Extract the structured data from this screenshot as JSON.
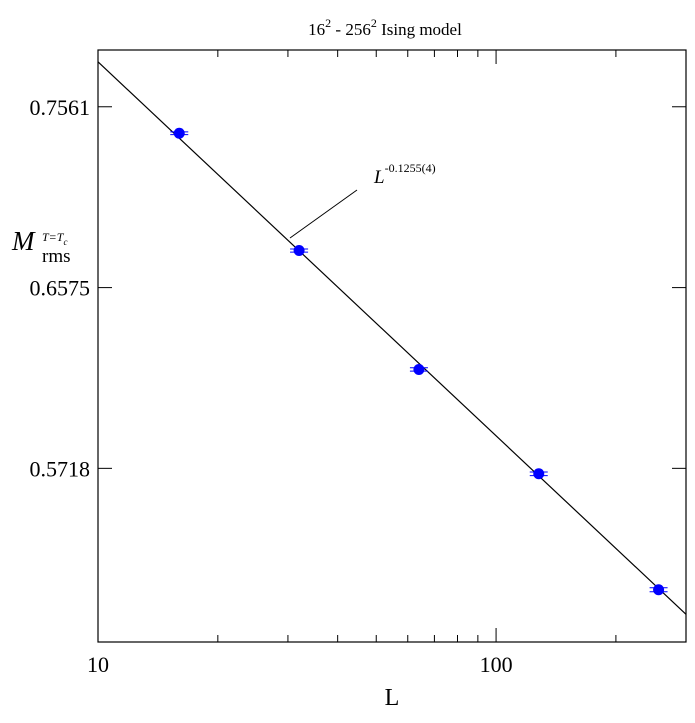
{
  "chart_data": {
    "type": "scatter",
    "title": {
      "base1": "16",
      "exp1": "2",
      "mid": " - 256",
      "exp2": "2",
      "rest": " Ising model"
    },
    "xlabel": "L",
    "ylabel": {
      "main": "M",
      "sub": "rms",
      "sup": "T=T",
      "supsub": "c"
    },
    "x_scale": "log",
    "y_scale": "log",
    "xlim": [
      10,
      300
    ],
    "ylim": [
      0.5,
      0.79
    ],
    "x_ticks": [
      10,
      100
    ],
    "x_tick_labels": [
      "10",
      "100"
    ],
    "y_ticks": [
      0.7561,
      0.6575,
      0.5718
    ],
    "y_tick_labels": [
      "0.7561",
      "0.6575",
      "0.5718"
    ],
    "grid": false,
    "series": [
      {
        "x": [
          16,
          32,
          64,
          128,
          256
        ],
        "y": [
          0.7408,
          0.6766,
          0.6172,
          0.5694,
          0.5206
        ],
        "error": [
          0.0008,
          0.0008,
          0.0008,
          0.0008,
          0.0008
        ],
        "color": "#0000ff"
      }
    ],
    "fit": {
      "form": "power-law",
      "exponent": -0.1255,
      "color": "#000000"
    },
    "annotation": {
      "base": "L",
      "exponent": "-0.1255(4)"
    }
  }
}
